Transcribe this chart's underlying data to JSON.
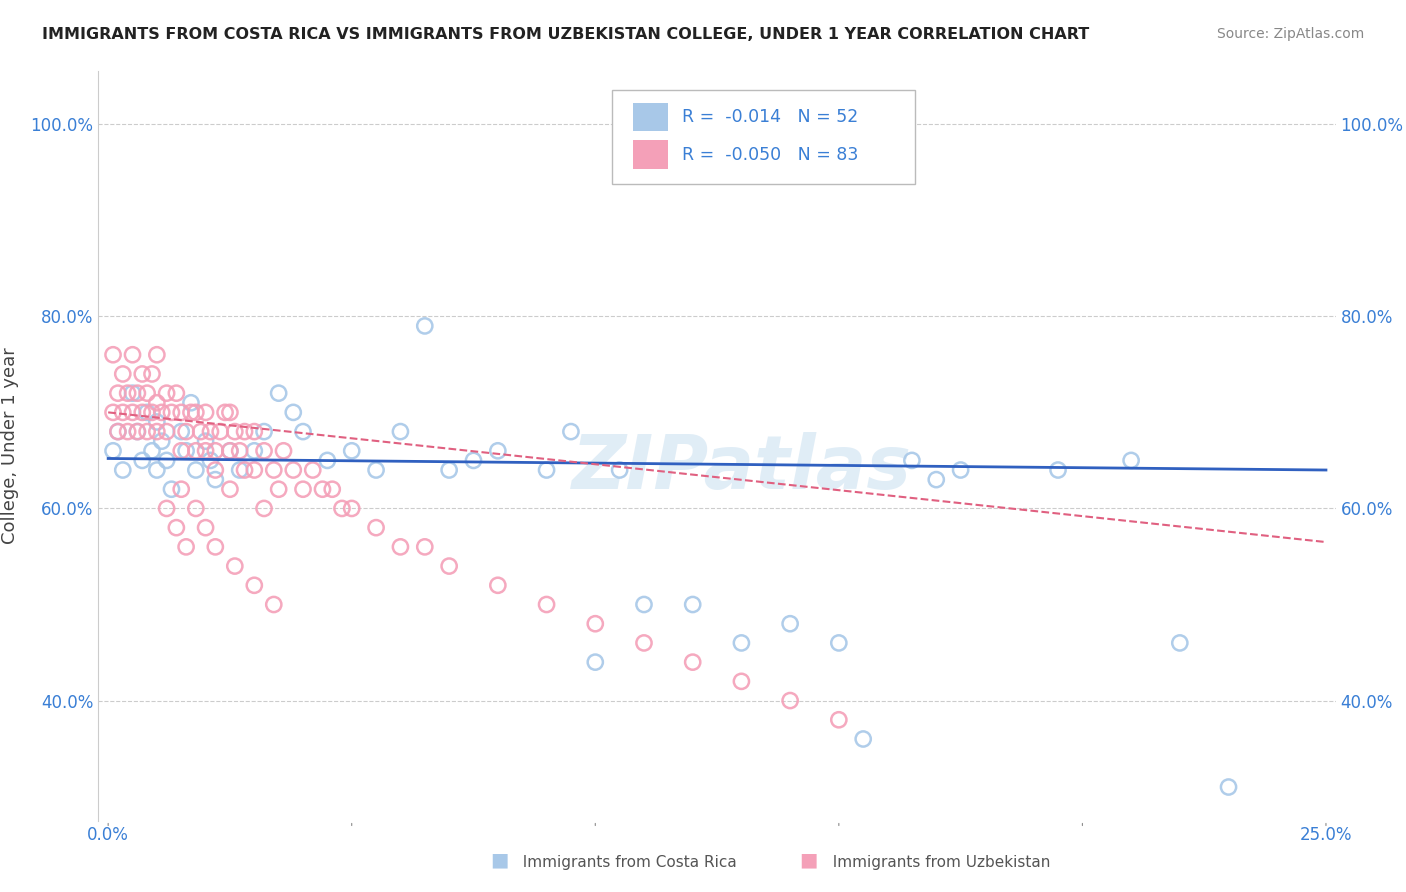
{
  "title": "IMMIGRANTS FROM COSTA RICA VS IMMIGRANTS FROM UZBEKISTAN COLLEGE, UNDER 1 YEAR CORRELATION CHART",
  "source": "Source: ZipAtlas.com",
  "ylabel": "College, Under 1 year",
  "xmin": 0.0,
  "xmax": 0.25,
  "ymin": 0.275,
  "ymax": 1.055,
  "xtick_positions": [
    0.0,
    0.05,
    0.1,
    0.15,
    0.2,
    0.25
  ],
  "xtick_labels": [
    "0.0%",
    "",
    "",
    "",
    "",
    "25.0%"
  ],
  "ytick_values": [
    0.4,
    0.6,
    0.8,
    1.0
  ],
  "ytick_labels": [
    "40.0%",
    "60.0%",
    "80.0%",
    "100.0%"
  ],
  "watermark": "ZIPatlas",
  "color_blue": "#a8c8e8",
  "color_pink": "#f4a0b8",
  "color_blue_line": "#3060c0",
  "color_pink_line": "#e06080",
  "legend_color": "#3a7fd5",
  "blue_x": [
    0.001,
    0.002,
    0.003,
    0.005,
    0.006,
    0.007,
    0.008,
    0.009,
    0.01,
    0.01,
    0.011,
    0.012,
    0.013,
    0.015,
    0.016,
    0.017,
    0.018,
    0.02,
    0.021,
    0.022,
    0.025,
    0.027,
    0.03,
    0.032,
    0.035,
    0.038,
    0.04,
    0.045,
    0.05,
    0.055,
    0.06,
    0.065,
    0.07,
    0.075,
    0.08,
    0.09,
    0.095,
    0.1,
    0.105,
    0.11,
    0.12,
    0.13,
    0.14,
    0.15,
    0.17,
    0.195,
    0.21,
    0.22,
    0.23,
    0.165,
    0.155,
    0.175
  ],
  "blue_y": [
    0.66,
    0.68,
    0.64,
    0.72,
    0.68,
    0.65,
    0.7,
    0.66,
    0.69,
    0.64,
    0.67,
    0.65,
    0.62,
    0.68,
    0.66,
    0.71,
    0.64,
    0.67,
    0.65,
    0.63,
    0.66,
    0.64,
    0.66,
    0.68,
    0.72,
    0.7,
    0.68,
    0.65,
    0.66,
    0.64,
    0.68,
    0.79,
    0.64,
    0.65,
    0.66,
    0.64,
    0.68,
    0.44,
    0.64,
    0.5,
    0.5,
    0.46,
    0.48,
    0.46,
    0.63,
    0.64,
    0.65,
    0.46,
    0.31,
    0.65,
    0.36,
    0.64
  ],
  "pink_x": [
    0.001,
    0.001,
    0.002,
    0.002,
    0.003,
    0.003,
    0.004,
    0.004,
    0.005,
    0.005,
    0.006,
    0.006,
    0.007,
    0.007,
    0.008,
    0.008,
    0.009,
    0.009,
    0.01,
    0.01,
    0.01,
    0.011,
    0.012,
    0.012,
    0.013,
    0.014,
    0.015,
    0.015,
    0.016,
    0.017,
    0.018,
    0.018,
    0.019,
    0.02,
    0.02,
    0.021,
    0.022,
    0.023,
    0.024,
    0.025,
    0.025,
    0.026,
    0.027,
    0.028,
    0.03,
    0.03,
    0.032,
    0.034,
    0.036,
    0.038,
    0.04,
    0.042,
    0.044,
    0.046,
    0.048,
    0.05,
    0.055,
    0.06,
    0.065,
    0.07,
    0.08,
    0.09,
    0.1,
    0.11,
    0.12,
    0.13,
    0.14,
    0.15,
    0.025,
    0.028,
    0.032,
    0.035,
    0.022,
    0.015,
    0.018,
    0.02,
    0.012,
    0.014,
    0.016,
    0.022,
    0.026,
    0.03,
    0.034
  ],
  "pink_y": [
    0.7,
    0.76,
    0.68,
    0.72,
    0.7,
    0.74,
    0.68,
    0.72,
    0.7,
    0.76,
    0.68,
    0.72,
    0.7,
    0.74,
    0.68,
    0.72,
    0.7,
    0.74,
    0.68,
    0.71,
    0.76,
    0.7,
    0.68,
    0.72,
    0.7,
    0.72,
    0.66,
    0.7,
    0.68,
    0.7,
    0.66,
    0.7,
    0.68,
    0.66,
    0.7,
    0.68,
    0.66,
    0.68,
    0.7,
    0.66,
    0.7,
    0.68,
    0.66,
    0.68,
    0.64,
    0.68,
    0.66,
    0.64,
    0.66,
    0.64,
    0.62,
    0.64,
    0.62,
    0.62,
    0.6,
    0.6,
    0.58,
    0.56,
    0.56,
    0.54,
    0.52,
    0.5,
    0.48,
    0.46,
    0.44,
    0.42,
    0.4,
    0.38,
    0.62,
    0.64,
    0.6,
    0.62,
    0.64,
    0.62,
    0.6,
    0.58,
    0.6,
    0.58,
    0.56,
    0.56,
    0.54,
    0.52,
    0.5
  ]
}
